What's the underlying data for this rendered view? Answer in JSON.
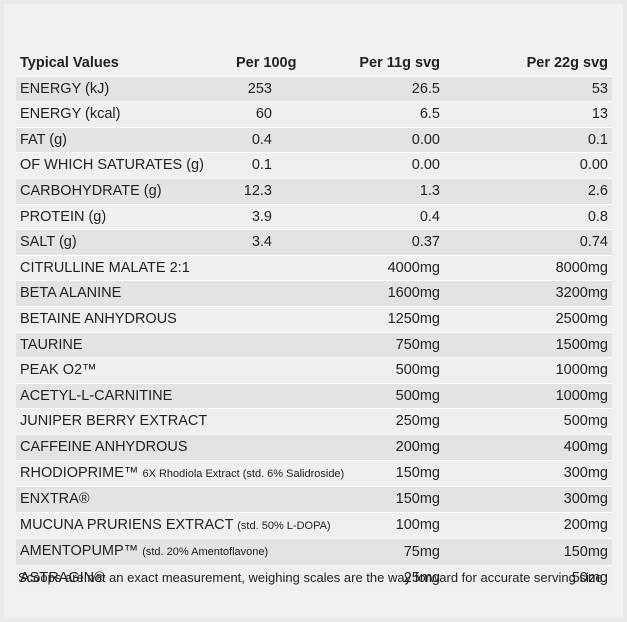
{
  "table": {
    "headers": [
      "Typical Values",
      "Per 100g",
      "Per 11g svg",
      "Per 22g svg"
    ],
    "rows": [
      {
        "label": "ENERGY (kJ)",
        "note": "",
        "per100": "253",
        "per11": "26.5",
        "per22": "53"
      },
      {
        "label": "ENERGY (kcal)",
        "note": "",
        "per100": "60",
        "per11": "6.5",
        "per22": "13"
      },
      {
        "label": "FAT (g)",
        "note": "",
        "per100": "0.4",
        "per11": "0.00",
        "per22": "0.1"
      },
      {
        "label": "OF WHICH SATURATES (g)",
        "note": "",
        "per100": "0.1",
        "per11": "0.00",
        "per22": "0.00"
      },
      {
        "label": "CARBOHYDRATE (g)",
        "note": "",
        "per100": "12.3",
        "per11": "1.3",
        "per22": "2.6"
      },
      {
        "label": "PROTEIN (g)",
        "note": "",
        "per100": "3.9",
        "per11": "0.4",
        "per22": "0.8"
      },
      {
        "label": "SALT (g)",
        "note": "",
        "per100": "3.4",
        "per11": "0.37",
        "per22": "0.74"
      },
      {
        "label": "CITRULLINE MALATE  2:1",
        "note": "",
        "per100": "",
        "per11": "4000mg",
        "per22": "8000mg"
      },
      {
        "label": "BETA ALANINE",
        "note": "",
        "per100": "",
        "per11": "1600mg",
        "per22": "3200mg"
      },
      {
        "label": "BETAINE ANHYDROUS",
        "note": "",
        "per100": "",
        "per11": "1250mg",
        "per22": "2500mg"
      },
      {
        "label": "TAURINE",
        "note": "",
        "per100": "",
        "per11": "750mg",
        "per22": "1500mg"
      },
      {
        "label": "PEAK O2™",
        "note": "",
        "per100": "",
        "per11": "500mg",
        "per22": "1000mg"
      },
      {
        "label": "ACETYL-L-CARNITINE",
        "note": "",
        "per100": "",
        "per11": "500mg",
        "per22": "1000mg"
      },
      {
        "label": "JUNIPER BERRY EXTRACT",
        "note": "",
        "per100": "",
        "per11": "250mg",
        "per22": "500mg"
      },
      {
        "label": "CAFFEINE ANHYDROUS",
        "note": "",
        "per100": "",
        "per11": "200mg",
        "per22": "400mg"
      },
      {
        "label": "RHODIOPRIME™",
        "note": "6X Rhodiola Extract (std. 6% Salidroside)",
        "per100": "",
        "per11": "150mg",
        "per22": "300mg"
      },
      {
        "label": "ENXTRA®",
        "note": "",
        "per100": "",
        "per11": "150mg",
        "per22": "300mg"
      },
      {
        "label": "MUCUNA PRURIENS EXTRACT",
        "note": "(std. 50% L-DOPA)",
        "per100": "",
        "per11": "100mg",
        "per22": "200mg"
      },
      {
        "label": "AMENTOPUMP™",
        "note": "(std. 20% Amentoflavone)",
        "per100": "",
        "per11": "75mg",
        "per22": "150mg"
      },
      {
        "label": "ASTRAGIN®",
        "note": "",
        "per100": "",
        "per11": "25mg",
        "per22": "50mg"
      }
    ]
  },
  "footnote": "Scoops are not an exact measurement, weighing scales are the way forward for accurate serving size."
}
